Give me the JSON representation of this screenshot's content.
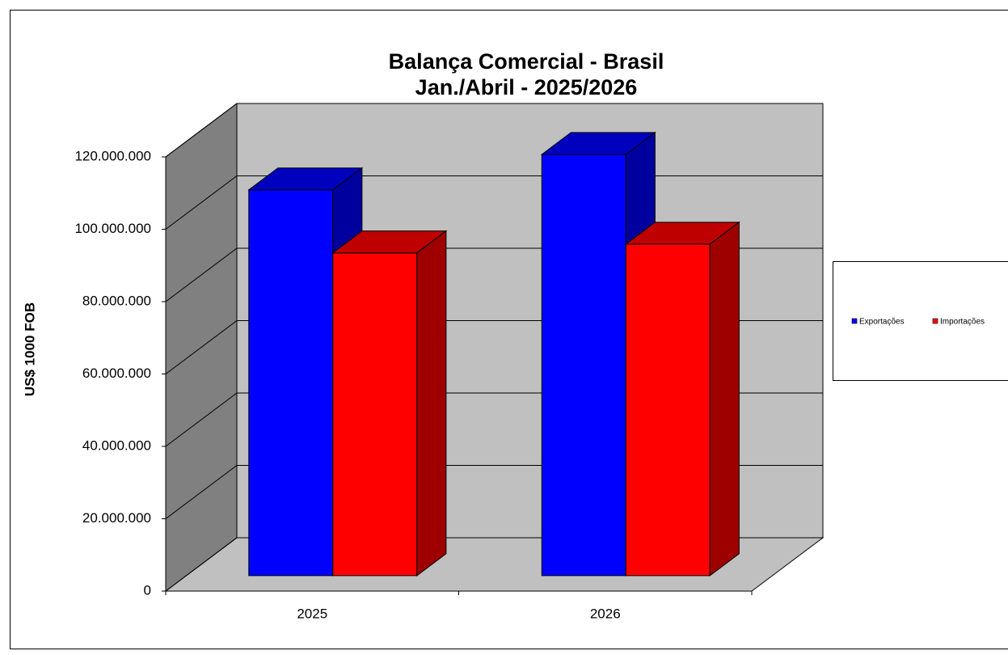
{
  "chart_data": {
    "type": "bar3d",
    "title": "Balança Comercial - Brasil",
    "subtitle": "Jan./Abril - 2025/2026",
    "y_label": "US$ 1000 FOB",
    "categories": [
      "2025",
      "2026"
    ],
    "series": [
      {
        "name": "Exportações",
        "color": "#0000ff",
        "values": [
          106600000,
          116400000
        ]
      },
      {
        "name": "Importações",
        "color": "#ff0000",
        "values": [
          89200000,
          91600000
        ]
      }
    ],
    "ylim": [
      0,
      120000000
    ],
    "yticks": [
      0,
      {
        "value": 20000000,
        "label": "20.000.000"
      },
      {
        "value": 40000000,
        "label": "40.000.000"
      },
      {
        "value": 60000000,
        "label": "60.000.000"
      },
      {
        "value": 80000000,
        "label": "80.000.000"
      },
      {
        "value": 100000000,
        "label": "100.000.000"
      },
      {
        "value": 120000000,
        "label": "120.000.000"
      }
    ],
    "grid": true,
    "legend": "right"
  }
}
